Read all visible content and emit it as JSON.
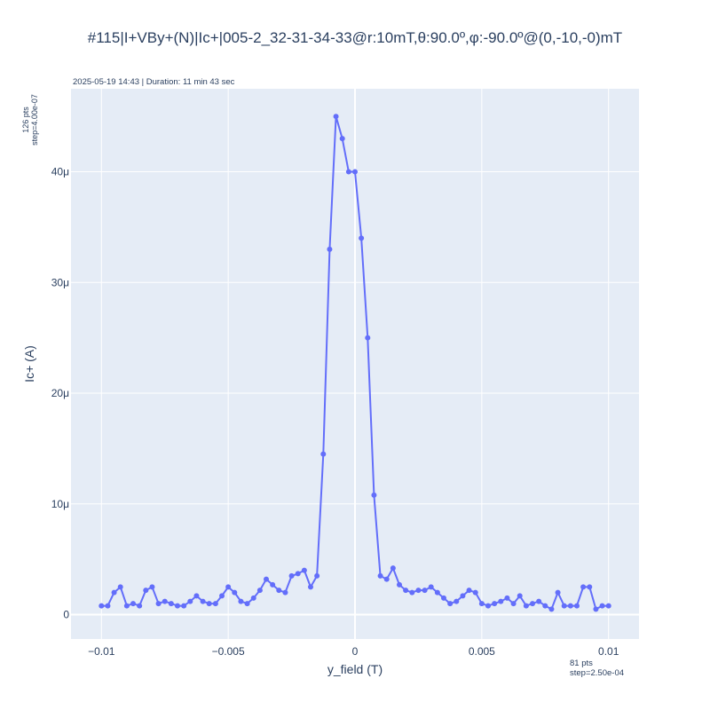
{
  "chart_data": {
    "type": "line",
    "title": "#115|I+VBy+(N)|Ic+|005-2_32-31-34-33@r:10mT,θ:90.0º,φ:-90.0º@(0,-10,-0)mT",
    "subtitle": "2025-05-19 14:43 | Duration: 11 min 43 sec",
    "xlabel": "y_field (T)",
    "ylabel": "Ic+ (A)",
    "x_note": [
      "81 pts",
      "step=2.50e-04"
    ],
    "y_note": [
      "126 pts",
      "step=4.00e-07"
    ],
    "xlim": [
      -0.0112,
      0.0112
    ],
    "ylim": [
      -2.2e-06,
      4.75e-05
    ],
    "x_ticks": [
      {
        "value": -0.01,
        "label": "−0.01"
      },
      {
        "value": -0.005,
        "label": "−0.005"
      },
      {
        "value": 0,
        "label": "0"
      },
      {
        "value": 0.005,
        "label": "0.005"
      },
      {
        "value": 0.01,
        "label": "0.01"
      }
    ],
    "y_ticks": [
      {
        "value": 0,
        "label": "0"
      },
      {
        "value": 1e-05,
        "label": "10μ"
      },
      {
        "value": 2e-05,
        "label": "20μ"
      },
      {
        "value": 3e-05,
        "label": "30μ"
      },
      {
        "value": 4e-05,
        "label": "40μ"
      }
    ],
    "grid": true,
    "colors": {
      "line": "#636efa",
      "plot_bg": "#e5ecf6",
      "grid": "#ffffff",
      "text": "#2a3f5f"
    },
    "series": [
      {
        "x_start": -0.01,
        "x_step": 0.00025,
        "y_unit": "μA",
        "y": [
          0.8,
          0.8,
          2.0,
          2.5,
          0.8,
          1.0,
          0.8,
          2.2,
          2.5,
          1.0,
          1.2,
          1.0,
          0.8,
          0.8,
          1.2,
          1.7,
          1.2,
          1.0,
          1.0,
          1.7,
          2.5,
          2.0,
          1.2,
          1.0,
          1.5,
          2.2,
          3.2,
          2.7,
          2.2,
          2.0,
          3.5,
          3.7,
          4.0,
          2.5,
          3.5,
          14.5,
          33.0,
          45.0,
          43.0,
          40.0,
          40.0,
          34.0,
          25.0,
          10.8,
          3.5,
          3.2,
          4.2,
          2.7,
          2.2,
          2.0,
          2.2,
          2.2,
          2.5,
          2.0,
          1.5,
          1.0,
          1.2,
          1.7,
          2.2,
          2.0,
          1.0,
          0.8,
          1.0,
          1.2,
          1.5,
          1.0,
          1.7,
          0.8,
          1.0,
          1.2,
          0.8,
          0.5,
          2.0,
          0.8,
          0.8,
          0.8,
          2.5,
          2.5,
          0.5,
          0.8,
          0.8
        ]
      }
    ]
  }
}
